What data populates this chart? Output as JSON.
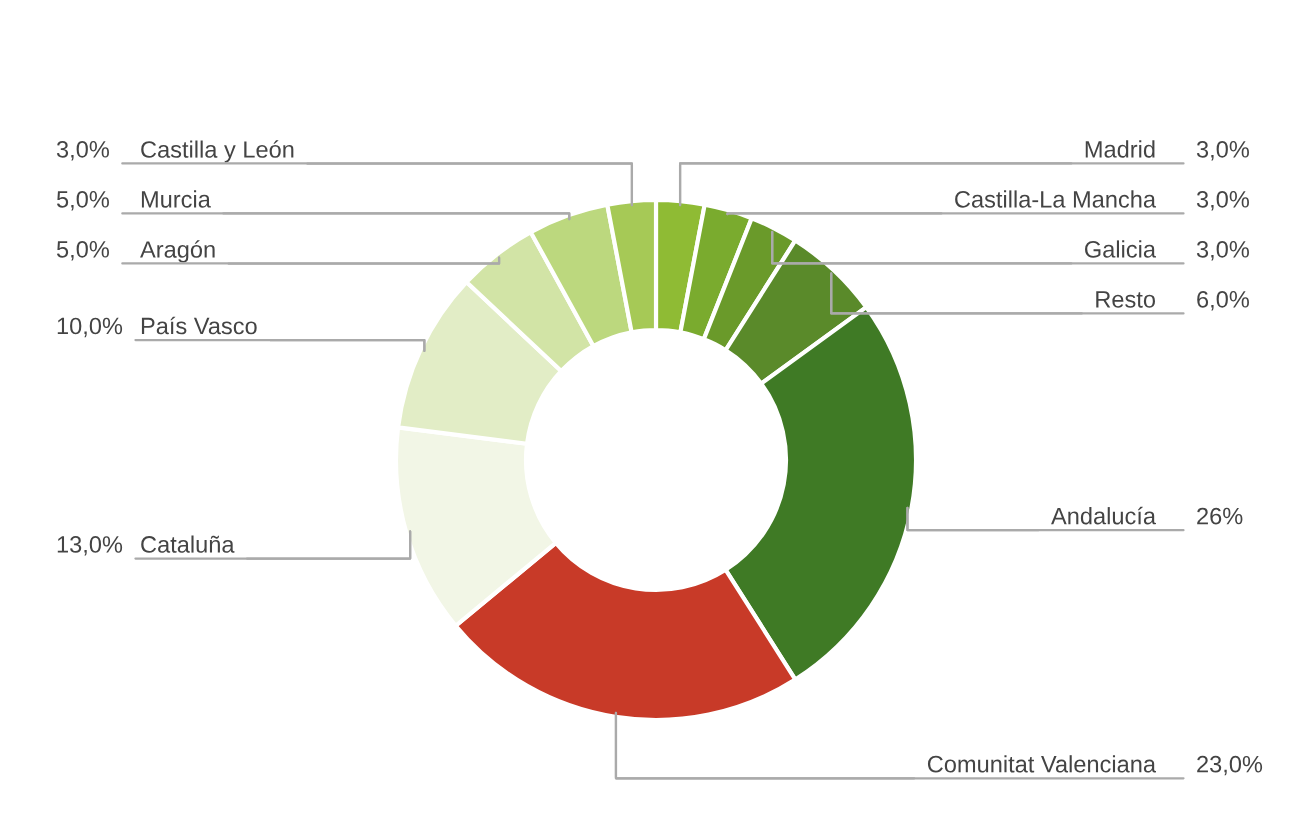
{
  "chart_data": {
    "type": "donut",
    "categories": [
      "Madrid",
      "Castilla-La Mancha",
      "Galicia",
      "Resto",
      "Andalucía",
      "Comunitat Valenciana",
      "Cataluña",
      "País Vasco",
      "Aragón",
      "Murcia",
      "Castilla y León"
    ],
    "values": [
      3,
      3,
      3,
      6,
      26,
      23,
      13,
      10,
      5,
      5,
      3
    ],
    "value_labels": [
      "3,0%",
      "3,0%",
      "3,0%",
      "6,0%",
      "26%",
      "23,0%",
      "13,0%",
      "10,0%",
      "5,0%",
      "5,0%",
      "3,0%"
    ],
    "colors": [
      "#8fbb34",
      "#7aab2e",
      "#6a9a2a",
      "#5a8a2a",
      "#3f7a25",
      "#c83a28",
      "#f2f6e6",
      "#e2edc6",
      "#d2e4a6",
      "#bcd87e",
      "#a6c956"
    ]
  }
}
